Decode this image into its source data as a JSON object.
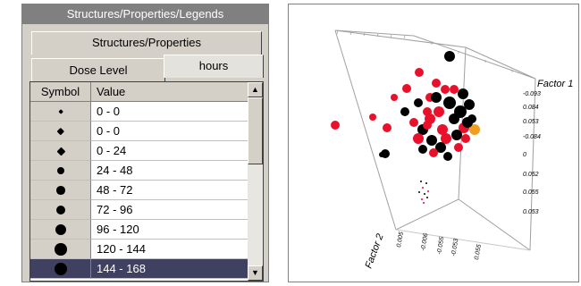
{
  "legend_panel": {
    "title": "Structures/Properties/Legends",
    "tab_structures": "Structures/Properties",
    "tab_dose": "Dose Level",
    "tab_hours": "hours",
    "columns": [
      "Symbol",
      "Value"
    ],
    "rows": [
      {
        "value": "0 - 0",
        "symbol": "diamond-dot",
        "size": 1
      },
      {
        "value": "0 - 0",
        "symbol": "diamond-dot",
        "size": 2
      },
      {
        "value": "0 - 24",
        "symbol": "diamond-dot",
        "size": 3
      },
      {
        "value": "24 - 48",
        "symbol": "star-dot",
        "size": 4
      },
      {
        "value": "48 - 72",
        "symbol": "star-dot",
        "size": 5
      },
      {
        "value": "72 - 96",
        "symbol": "star-dot",
        "size": 6
      },
      {
        "value": "96 - 120",
        "symbol": "star-dot",
        "size": 7
      },
      {
        "value": "120 - 144",
        "symbol": "circle-dot",
        "size": 8
      },
      {
        "value": "144 - 168",
        "symbol": "circle-dot",
        "size": 9,
        "selected": true
      }
    ]
  },
  "plot_panel": {
    "axis_factor1": "Factor 1",
    "axis_factor2": "Factor 2",
    "factor1_ticks": [
      "-0.093",
      "0.084",
      "0.053",
      "-0.084",
      "0",
      "0.052",
      "0.055",
      "0.053"
    ],
    "factor2_ticks": [
      "0.005",
      "-0.006",
      "-0.055",
      "-0.053",
      "0.055"
    ],
    "colors": {
      "red": "#e8102a",
      "black": "#000000",
      "orange": "#f0a020"
    }
  }
}
